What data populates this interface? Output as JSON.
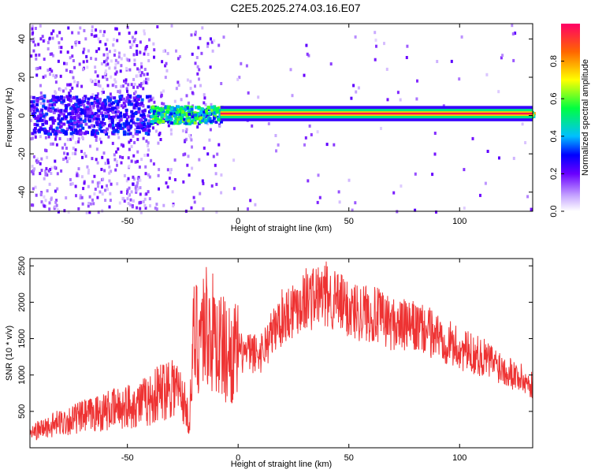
{
  "title": "C2E5.2025.274.03.16.E07",
  "chart_data": [
    {
      "type": "heatmap",
      "xlabel": "Height of straight line (km)",
      "ylabel": "Frequency (Hz)",
      "xlim": [
        -94,
        133
      ],
      "ylim": [
        -50,
        48
      ],
      "xticks": [
        -50,
        0,
        50,
        100
      ],
      "yticks": [
        -40,
        -20,
        0,
        20,
        40
      ],
      "colorbar": {
        "label": "Normalized spectral amplitude",
        "range": [
          0,
          1
        ],
        "ticks": [
          "0.0",
          "0.2",
          "0.4",
          "0.6",
          "0.8"
        ]
      },
      "band": {
        "center_hz": 1,
        "segments": [
          {
            "x0": -94,
            "x1": -40,
            "intensity": 0.35,
            "scatter_noise": 0.9
          },
          {
            "x0": -40,
            "x1": -8,
            "intensity": 0.65,
            "scatter_noise": 0.35
          },
          {
            "x0": -8,
            "x1": 133,
            "intensity": 0.95,
            "scatter_noise": 0.05
          }
        ]
      }
    },
    {
      "type": "line",
      "xlabel": "Height of straight line (km)",
      "ylabel": "SNR (10 * v/v)",
      "xlim": [
        -94,
        133
      ],
      "ylim": [
        0,
        2600
      ],
      "xticks": [
        -50,
        0,
        50,
        100
      ],
      "yticks": [
        500,
        1000,
        1500,
        2000,
        2500
      ],
      "color": "#ee3333",
      "series": [
        {
          "x": [
            -94,
            -80,
            -60,
            -40,
            -30,
            -25,
            -22,
            -20,
            -15,
            -10,
            -5,
            0,
            10,
            20,
            30,
            40,
            50,
            60,
            70,
            80,
            90,
            100,
            110,
            120,
            133
          ],
          "y": [
            200,
            350,
            500,
            650,
            900,
            700,
            350,
            1500,
            1700,
            1500,
            1300,
            1300,
            1300,
            1800,
            2050,
            2100,
            1900,
            1850,
            1700,
            1650,
            1550,
            1350,
            1250,
            1100,
            850
          ]
        }
      ]
    }
  ]
}
